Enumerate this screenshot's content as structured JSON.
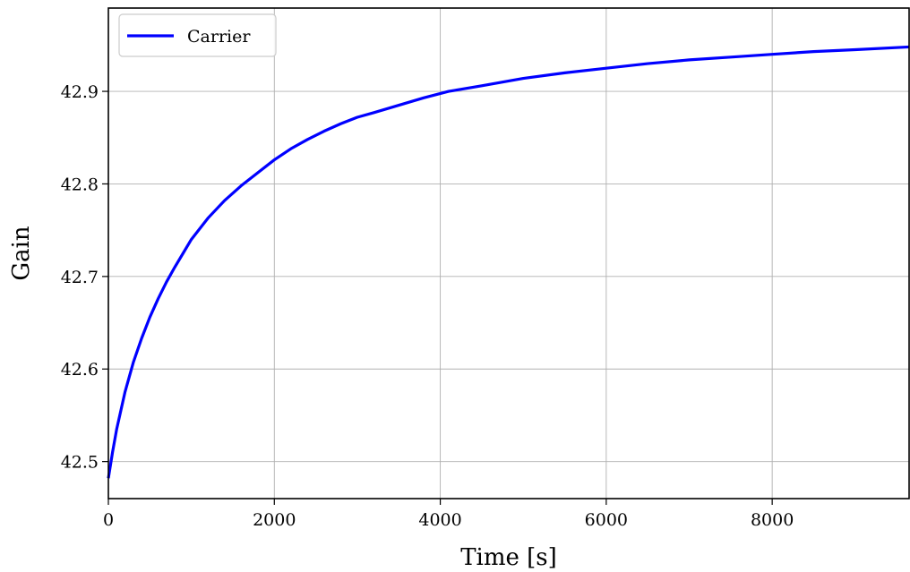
{
  "chart_data": {
    "type": "line",
    "title": "",
    "xlabel": "Time [s]",
    "ylabel": "Gain",
    "xlim": [
      0,
      9650
    ],
    "ylim": [
      42.46,
      42.99
    ],
    "xticks": [
      0,
      2000,
      4000,
      6000,
      8000
    ],
    "xtick_labels": [
      "0",
      "2000",
      "4000",
      "6000",
      "8000"
    ],
    "yticks": [
      42.5,
      42.6,
      42.7,
      42.8,
      42.9
    ],
    "ytick_labels": [
      "42.5",
      "42.6",
      "42.7",
      "42.8",
      "42.9"
    ],
    "grid": true,
    "legend_position": "top-left",
    "series": [
      {
        "name": "Carrier",
        "color": "#0000ff",
        "x": [
          0,
          50,
          100,
          200,
          300,
          400,
          500,
          600,
          700,
          800,
          900,
          1000,
          1200,
          1400,
          1600,
          1800,
          2000,
          2200,
          2400,
          2600,
          2800,
          3000,
          3200,
          3500,
          3800,
          4100,
          4500,
          5000,
          5500,
          6000,
          6500,
          7000,
          7500,
          8000,
          8500,
          9000,
          9650
        ],
        "y": [
          42.482,
          42.51,
          42.535,
          42.575,
          42.607,
          42.633,
          42.656,
          42.676,
          42.694,
          42.71,
          42.725,
          42.74,
          42.763,
          42.782,
          42.798,
          42.812,
          42.826,
          42.838,
          42.848,
          42.857,
          42.865,
          42.872,
          42.877,
          42.885,
          42.893,
          42.9,
          42.906,
          42.914,
          42.92,
          42.925,
          42.93,
          42.934,
          42.937,
          42.94,
          42.943,
          42.945,
          42.948
        ]
      }
    ]
  }
}
